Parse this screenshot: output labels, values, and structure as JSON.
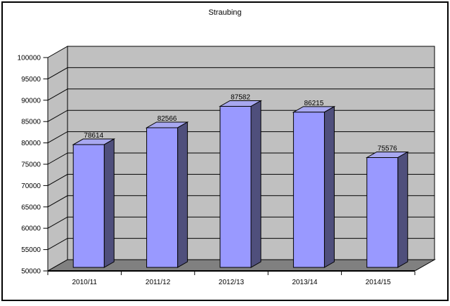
{
  "chart_data": {
    "type": "bar",
    "style": "3d-column",
    "title": "Straubing",
    "categories": [
      "2010/11",
      "2011/12",
      "2012/13",
      "2013/14",
      "2014/15"
    ],
    "values": [
      78614,
      82566,
      87582,
      86215,
      75576
    ],
    "series": [
      {
        "name": "Straubing",
        "values": [
          78614,
          82566,
          87582,
          86215,
          75576
        ]
      }
    ],
    "xlabel": "",
    "ylabel": "",
    "ylim": [
      50000,
      100000
    ],
    "y_tick_step": 5000,
    "y_tick_labels": [
      "100000",
      "95000",
      "90000",
      "85000",
      "80000",
      "75000",
      "70000",
      "65000",
      "60000",
      "55000",
      "50000"
    ],
    "grid": true,
    "legend_position": "none",
    "data_labels_visible": true
  },
  "colors": {
    "bar_front": "#9999FF",
    "bar_top": "#A8A8F0",
    "bar_side": "#4F4F7C",
    "wall": "#C0C0C0",
    "floor": "#808080",
    "gridline": "#000000",
    "outline": "#000000",
    "text": "#000000",
    "background": "#FFFFFF",
    "border": "#000000"
  }
}
